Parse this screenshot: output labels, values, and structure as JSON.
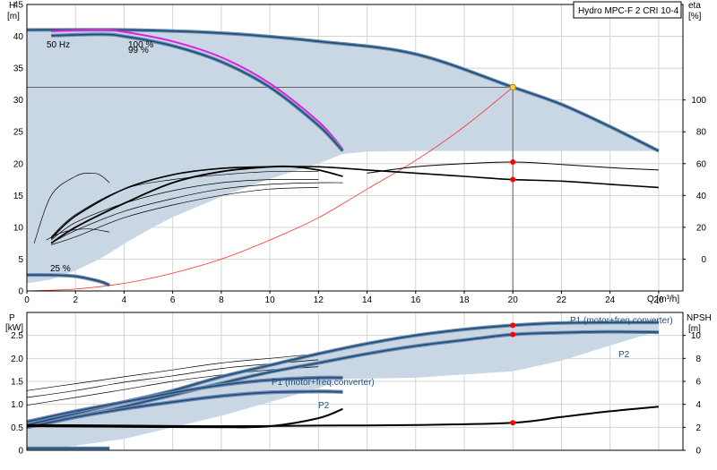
{
  "title": "Hydro MPC-F 2 CRI 10-4",
  "chart_data": [
    {
      "type": "line",
      "name": "head-efficiency",
      "xlabel": "Q [m³/h]",
      "ylabel": "H",
      "ylabel_unit": "[m]",
      "y2label": "eta",
      "y2label_unit": "[%]",
      "xlim": [
        0,
        27
      ],
      "ylim": [
        0,
        45
      ],
      "y2lim": [
        -20,
        160
      ],
      "x_ticks": [
        0,
        2,
        4,
        6,
        8,
        10,
        12,
        14,
        16,
        18,
        20,
        22,
        24,
        26
      ],
      "y_ticks": [
        0,
        5,
        10,
        15,
        20,
        25,
        30,
        35,
        40,
        45
      ],
      "y2_ticks": [
        0,
        20,
        40,
        60,
        80,
        100
      ],
      "labels": {
        "freq": "50 Hz",
        "speed_max": "100 %",
        "speed_99": "99 %",
        "speed_min": "25 %"
      },
      "colors": {
        "area": "#c9d7e4",
        "curve": "#1e4e7c",
        "curve_edge": "#6c8cad",
        "magenta": "#e020e0",
        "system": "#ff3030",
        "duty": "#ff0000"
      },
      "area_upper": [
        [
          0,
          41
        ],
        [
          4,
          41
        ],
        [
          8,
          40.5
        ],
        [
          12,
          39.2
        ],
        [
          16,
          37.2
        ],
        [
          20,
          32
        ],
        [
          22,
          29.3
        ],
        [
          24,
          25.8
        ],
        [
          26,
          22
        ]
      ],
      "area_lower": [
        [
          26,
          22
        ],
        [
          22,
          22
        ],
        [
          18,
          22
        ],
        [
          16,
          22
        ],
        [
          14,
          21.9
        ],
        [
          13,
          21.5
        ],
        [
          12,
          20
        ],
        [
          11,
          18.8
        ],
        [
          10,
          17.6
        ],
        [
          9,
          16.2
        ],
        [
          8,
          14.8
        ],
        [
          7,
          13.2
        ],
        [
          6,
          11.6
        ],
        [
          5,
          9.6
        ],
        [
          4,
          7.4
        ],
        [
          3,
          5
        ],
        [
          2,
          3.2
        ],
        [
          1,
          1.8
        ],
        [
          0,
          1.2
        ]
      ],
      "curve_two_pumps": [
        [
          0,
          41
        ],
        [
          4,
          41
        ],
        [
          8,
          40.5
        ],
        [
          12,
          39.2
        ],
        [
          16,
          37.2
        ],
        [
          20,
          32
        ],
        [
          22,
          29.3
        ],
        [
          24,
          25.8
        ],
        [
          26,
          22
        ]
      ],
      "curve_one_pump": [
        [
          1,
          40.1
        ],
        [
          3,
          40.3
        ],
        [
          4,
          40
        ],
        [
          6,
          38.5
        ],
        [
          8,
          36
        ],
        [
          10,
          32
        ],
        [
          12,
          26
        ],
        [
          13,
          22
        ]
      ],
      "curve_one_pump_100": [
        [
          1,
          40.8
        ],
        [
          3,
          41
        ],
        [
          4,
          40.7
        ],
        [
          6,
          39.2
        ],
        [
          8,
          36.7
        ],
        [
          10,
          32.6
        ],
        [
          12,
          26.6
        ],
        [
          13,
          22.3
        ]
      ],
      "curve_min_speed": [
        [
          0,
          2.5
        ],
        [
          1,
          2.5
        ],
        [
          2,
          2.3
        ],
        [
          3,
          1.5
        ],
        [
          3.4,
          0.9
        ]
      ],
      "system_curve": [
        [
          0,
          0
        ],
        [
          2,
          0.3
        ],
        [
          4,
          1.2
        ],
        [
          6,
          2.8
        ],
        [
          8,
          5
        ],
        [
          10,
          8
        ],
        [
          12,
          11.5
        ],
        [
          14,
          16
        ],
        [
          16,
          20.5
        ],
        [
          18,
          25.8
        ],
        [
          20,
          32
        ]
      ],
      "duty_point": {
        "q": 20,
        "h": 32
      },
      "eta_two_pumps": [
        [
          14,
          54
        ],
        [
          16,
          58
        ],
        [
          18,
          60
        ],
        [
          20,
          61
        ],
        [
          22,
          59.5
        ],
        [
          24,
          57.5
        ],
        [
          26,
          56
        ]
      ],
      "eta_total": [
        [
          1,
          13
        ],
        [
          2,
          27
        ],
        [
          4,
          44
        ],
        [
          6,
          53
        ],
        [
          8,
          57
        ],
        [
          10,
          58
        ],
        [
          12,
          58
        ],
        [
          14,
          56
        ],
        [
          16,
          54
        ],
        [
          18,
          52
        ],
        [
          20,
          50
        ],
        [
          22,
          49
        ],
        [
          24,
          47
        ],
        [
          26,
          45
        ]
      ],
      "eta_one_pump": [
        [
          1,
          10
        ],
        [
          2,
          20
        ],
        [
          4,
          35
        ],
        [
          6,
          48
        ],
        [
          8,
          55
        ],
        [
          10,
          58
        ],
        [
          11,
          58
        ],
        [
          12,
          56
        ],
        [
          13,
          52
        ]
      ],
      "eta_thin_a": [
        [
          1,
          12
        ],
        [
          2,
          23
        ],
        [
          4,
          35
        ],
        [
          6,
          43
        ],
        [
          8,
          48
        ],
        [
          10,
          50
        ],
        [
          12,
          50
        ]
      ],
      "eta_thin_b": [
        [
          1,
          10
        ],
        [
          2,
          18
        ],
        [
          4,
          30
        ],
        [
          6,
          38
        ],
        [
          8,
          44
        ],
        [
          10,
          47
        ],
        [
          12,
          48
        ],
        [
          13,
          48
        ]
      ],
      "eta_thin_c": [
        [
          1,
          9
        ],
        [
          2,
          14
        ],
        [
          4,
          26
        ],
        [
          6,
          34
        ],
        [
          8,
          40
        ],
        [
          10,
          44
        ],
        [
          12,
          45
        ]
      ],
      "eta_thin_d": [
        [
          1,
          14
        ],
        [
          2,
          28
        ],
        [
          4,
          44
        ],
        [
          6,
          50
        ],
        [
          8,
          53
        ],
        [
          10,
          55
        ],
        [
          12,
          55
        ]
      ],
      "eta_low_speed": [
        [
          0.3,
          10
        ],
        [
          1,
          40
        ],
        [
          2,
          52
        ],
        [
          2.6,
          54
        ],
        [
          3,
          53
        ],
        [
          3.4,
          48
        ]
      ],
      "eta_low_speed_2": [
        [
          0.8,
          12
        ],
        [
          1.5,
          17
        ],
        [
          2.5,
          19
        ],
        [
          3.4,
          17
        ]
      ],
      "eta_duty": {
        "q": 20,
        "eta": 61
      },
      "eta_duty_2": {
        "q": 20,
        "eta": 50
      }
    },
    {
      "type": "line",
      "name": "power-npsh",
      "xlabel": "",
      "ylabel": "P",
      "ylabel_unit": "[kW]",
      "y2label": "NPSH",
      "y2label_unit": "[m]",
      "xlim": [
        0,
        27
      ],
      "ylim": [
        0,
        3.0
      ],
      "y2lim": [
        0,
        12
      ],
      "y_ticks": [
        0,
        0.5,
        1.0,
        1.5,
        2.0,
        2.5
      ],
      "y_tick_labels": [
        "0",
        "0.5",
        "1.0",
        "1.5",
        "2.0",
        "2.5"
      ],
      "y2_ticks": [
        0,
        2,
        4,
        6,
        8,
        10
      ],
      "labels": {
        "p1_two": "P1 (motor+freq.converter)",
        "p2_two": "P2",
        "p1_one": "P1 (motor+freq.converter)",
        "p2_one": "P2"
      },
      "area_upper": [
        [
          0,
          0.62
        ],
        [
          4,
          1.05
        ],
        [
          8,
          1.6
        ],
        [
          12,
          2.1
        ],
        [
          16,
          2.5
        ],
        [
          20,
          2.75
        ],
        [
          24,
          2.8
        ],
        [
          26,
          2.82
        ]
      ],
      "area_lower": [
        [
          26,
          2.6
        ],
        [
          24,
          2.28
        ],
        [
          22,
          1.95
        ],
        [
          20,
          1.72
        ],
        [
          16,
          1.58
        ],
        [
          13,
          1.55
        ],
        [
          12,
          1.35
        ],
        [
          8,
          0.75
        ],
        [
          4,
          0.25
        ],
        [
          2,
          0.1
        ],
        [
          0,
          0
        ]
      ],
      "p1_two_pumps": [
        [
          0,
          0.55
        ],
        [
          2,
          0.8
        ],
        [
          4,
          1.05
        ],
        [
          6,
          1.3
        ],
        [
          8,
          1.6
        ],
        [
          10,
          1.85
        ],
        [
          12,
          2.1
        ],
        [
          14,
          2.32
        ],
        [
          16,
          2.5
        ],
        [
          18,
          2.63
        ],
        [
          20,
          2.72
        ],
        [
          22,
          2.77
        ],
        [
          24,
          2.78
        ],
        [
          26,
          2.78
        ]
      ],
      "p2_two_pumps": [
        [
          0,
          0.5
        ],
        [
          2,
          0.72
        ],
        [
          4,
          0.95
        ],
        [
          6,
          1.2
        ],
        [
          8,
          1.46
        ],
        [
          10,
          1.7
        ],
        [
          12,
          1.9
        ],
        [
          14,
          2.1
        ],
        [
          16,
          2.27
        ],
        [
          18,
          2.4
        ],
        [
          20,
          2.52
        ],
        [
          22,
          2.56
        ],
        [
          24,
          2.58
        ],
        [
          26,
          2.57
        ]
      ],
      "p1_one_pump": [
        [
          0,
          0.62
        ],
        [
          2,
          0.85
        ],
        [
          4,
          1.05
        ],
        [
          6,
          1.25
        ],
        [
          8,
          1.42
        ],
        [
          10,
          1.53
        ],
        [
          12,
          1.58
        ],
        [
          13,
          1.58
        ]
      ],
      "p2_one_pump": [
        [
          0,
          0.5
        ],
        [
          2,
          0.72
        ],
        [
          4,
          0.9
        ],
        [
          6,
          1.05
        ],
        [
          8,
          1.18
        ],
        [
          10,
          1.26
        ],
        [
          12,
          1.28
        ],
        [
          13,
          1.27
        ]
      ],
      "p_thin_a": [
        [
          0,
          1.3
        ],
        [
          2,
          1.45
        ],
        [
          4,
          1.6
        ],
        [
          6,
          1.75
        ],
        [
          8,
          1.9
        ],
        [
          10,
          2.0
        ],
        [
          12,
          2.1
        ]
      ],
      "p_thin_b": [
        [
          0,
          1.15
        ],
        [
          2,
          1.3
        ],
        [
          4,
          1.48
        ],
        [
          6,
          1.62
        ],
        [
          8,
          1.78
        ],
        [
          10,
          1.88
        ],
        [
          12,
          1.97
        ]
      ],
      "p_thin_c": [
        [
          0,
          0.98
        ],
        [
          2,
          1.15
        ],
        [
          4,
          1.32
        ],
        [
          6,
          1.5
        ],
        [
          8,
          1.64
        ],
        [
          10,
          1.75
        ],
        [
          12,
          1.82
        ]
      ],
      "npsh_curve": [
        [
          0,
          2.1
        ],
        [
          4,
          2.05
        ],
        [
          8,
          2.0
        ],
        [
          10,
          2.1
        ],
        [
          12,
          2.8
        ],
        [
          13,
          3.6
        ]
      ],
      "npsh_two_pumps": [
        [
          0,
          2.2
        ],
        [
          4,
          2.15
        ],
        [
          8,
          2.1
        ],
        [
          12,
          2.15
        ],
        [
          16,
          2.2
        ],
        [
          20,
          2.4
        ],
        [
          22,
          2.9
        ],
        [
          24,
          3.4
        ],
        [
          26,
          3.8
        ]
      ],
      "npsh_low": [
        [
          0,
          0.18
        ],
        [
          3.4,
          0.18
        ]
      ],
      "duty_p1": {
        "q": 20,
        "p": 2.72
      },
      "duty_p2": {
        "q": 20,
        "p": 2.52
      },
      "duty_npsh": {
        "q": 20,
        "npsh": 2.4
      }
    }
  ]
}
